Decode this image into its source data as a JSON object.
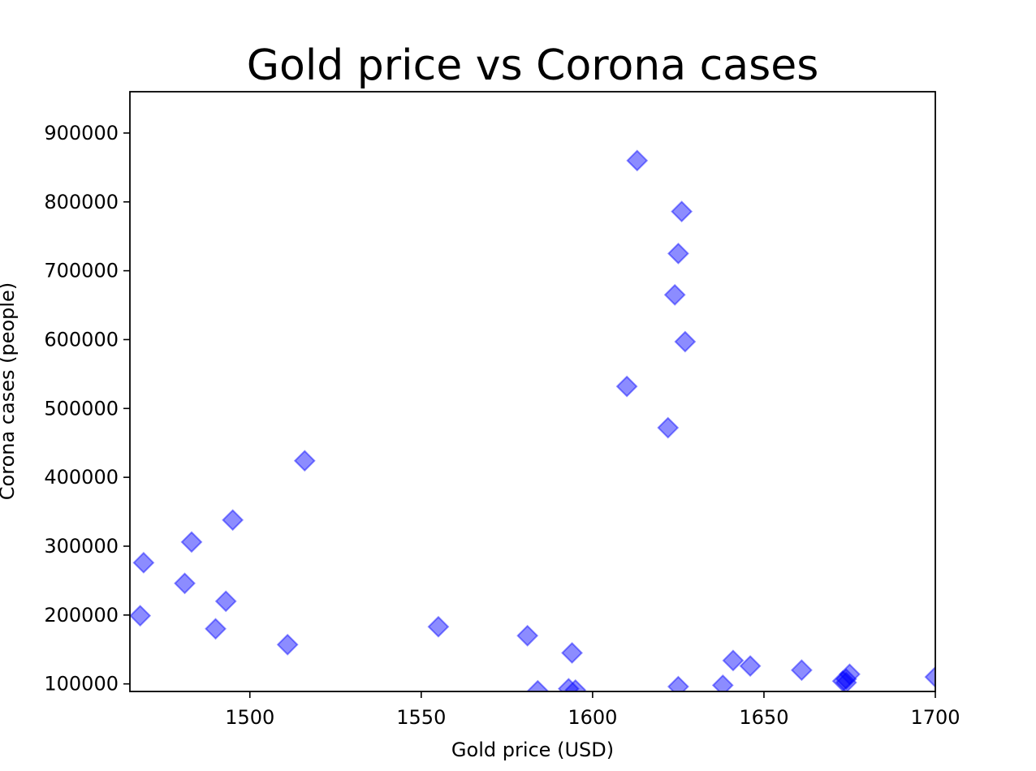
{
  "chart_data": {
    "type": "scatter",
    "title": "Gold price vs Corona cases",
    "xlabel": "Gold price (USD)",
    "ylabel": "Corona cases (people)",
    "xlim": [
      1465,
      1700
    ],
    "ylim": [
      89000,
      960000
    ],
    "xticks": [
      1500,
      1550,
      1600,
      1650,
      1700
    ],
    "yticks": [
      100000,
      200000,
      300000,
      400000,
      500000,
      600000,
      700000,
      800000,
      900000
    ],
    "grid": false,
    "marker": "diamond",
    "marker_color": "#0000ff",
    "marker_alpha": 0.45,
    "series": [
      {
        "name": "cases",
        "points": [
          [
            1468,
            199000
          ],
          [
            1469,
            276000
          ],
          [
            1481,
            246000
          ],
          [
            1483,
            306000
          ],
          [
            1490,
            180000
          ],
          [
            1493,
            220000
          ],
          [
            1495,
            338000
          ],
          [
            1511,
            157000
          ],
          [
            1516,
            424000
          ],
          [
            1555,
            183000
          ],
          [
            1581,
            170000
          ],
          [
            1584,
            90000
          ],
          [
            1593,
            93000
          ],
          [
            1594,
            145000
          ],
          [
            1595,
            91000
          ],
          [
            1610,
            532000
          ],
          [
            1613,
            860000
          ],
          [
            1622,
            472000
          ],
          [
            1624,
            665000
          ],
          [
            1625,
            725000
          ],
          [
            1625,
            96000
          ],
          [
            1626,
            786000
          ],
          [
            1627,
            597000
          ],
          [
            1638,
            98000
          ],
          [
            1641,
            134000
          ],
          [
            1646,
            126000
          ],
          [
            1661,
            120000
          ],
          [
            1673,
            104000
          ],
          [
            1674,
            102000
          ],
          [
            1674,
            107000
          ],
          [
            1675,
            114000
          ],
          [
            1700,
            110000
          ]
        ]
      }
    ]
  }
}
